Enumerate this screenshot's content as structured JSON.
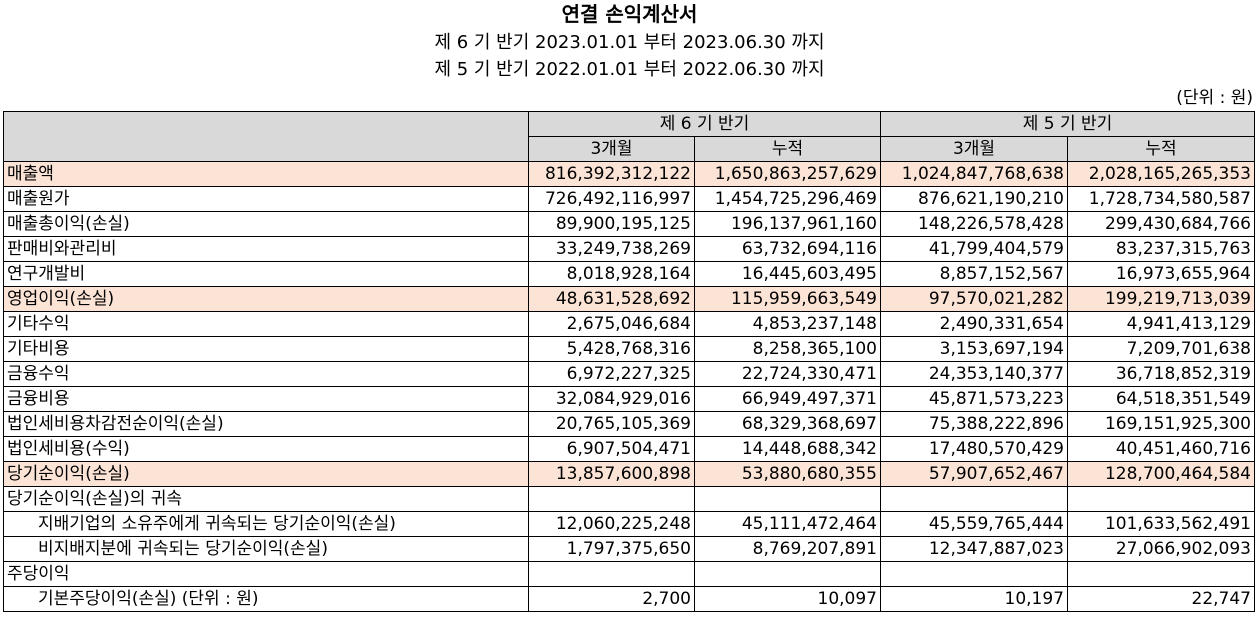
{
  "header": {
    "title": "연결 손익계산서",
    "period_current": "제 6 기 반기 2023.01.01 부터 2023.06.30 까지",
    "period_prior": "제 5 기 반기 2022.01.01 부터 2022.06.30 까지",
    "unit": "(단위 : 원)"
  },
  "table": {
    "col_groups": [
      "제 6 기 반기",
      "제 5 기 반기"
    ],
    "sub_cols": [
      "3개월",
      "누적",
      "3개월",
      "누적"
    ],
    "rows": [
      {
        "label": "매출액",
        "values": [
          "816,392,312,122",
          "1,650,863,257,629",
          "1,024,847,768,638",
          "2,028,165,265,353"
        ]
      },
      {
        "label": "매출원가",
        "values": [
          "726,492,116,997",
          "1,454,725,296,469",
          "876,621,190,210",
          "1,728,734,580,587"
        ]
      },
      {
        "label": "매출총이익(손실)",
        "values": [
          "89,900,195,125",
          "196,137,961,160",
          "148,226,578,428",
          "299,430,684,766"
        ]
      },
      {
        "label": "판매비와관리비",
        "values": [
          "33,249,738,269",
          "63,732,694,116",
          "41,799,404,579",
          "83,237,315,763"
        ]
      },
      {
        "label": "연구개발비",
        "values": [
          "8,018,928,164",
          "16,445,603,495",
          "8,857,152,567",
          "16,973,655,964"
        ]
      },
      {
        "label": "영업이익(손실)",
        "values": [
          "48,631,528,692",
          "115,959,663,549",
          "97,570,021,282",
          "199,219,713,039"
        ]
      },
      {
        "label": "기타수익",
        "values": [
          "2,675,046,684",
          "4,853,237,148",
          "2,490,331,654",
          "4,941,413,129"
        ]
      },
      {
        "label": "기타비용",
        "values": [
          "5,428,768,316",
          "8,258,365,100",
          "3,153,697,194",
          "7,209,701,638"
        ]
      },
      {
        "label": "금융수익",
        "values": [
          "6,972,227,325",
          "22,724,330,471",
          "24,353,140,377",
          "36,718,852,319"
        ]
      },
      {
        "label": "금융비용",
        "values": [
          "32,084,929,016",
          "66,949,497,371",
          "45,871,573,223",
          "64,518,351,549"
        ]
      },
      {
        "label": "법인세비용차감전순이익(손실)",
        "values": [
          "20,765,105,369",
          "68,329,368,697",
          "75,388,222,896",
          "169,151,925,300"
        ]
      },
      {
        "label": "법인세비용(수익)",
        "values": [
          "6,907,504,471",
          "14,448,688,342",
          "17,480,570,429",
          "40,451,460,716"
        ]
      },
      {
        "label": "당기순이익(손실)",
        "values": [
          "13,857,600,898",
          "53,880,680,355",
          "57,907,652,467",
          "128,700,464,584"
        ]
      },
      {
        "label": "당기순이익(손실)의 귀속",
        "values": [
          "",
          "",
          "",
          ""
        ]
      },
      {
        "label": "지배기업의 소유주에게 귀속되는 당기순이익(손실)",
        "values": [
          "12,060,225,248",
          "45,111,472,464",
          "45,559,765,444",
          "101,633,562,491"
        ]
      },
      {
        "label": "비지배지분에 귀속되는 당기순이익(손실)",
        "values": [
          "1,797,375,650",
          "8,769,207,891",
          "12,347,887,023",
          "27,066,902,093"
        ]
      },
      {
        "label": "주당이익",
        "values": [
          "",
          "",
          "",
          ""
        ]
      },
      {
        "label": "기본주당이익(손실) (단위 : 원)",
        "values": [
          "2,700",
          "10,097",
          "10,197",
          "22,747"
        ]
      }
    ]
  }
}
